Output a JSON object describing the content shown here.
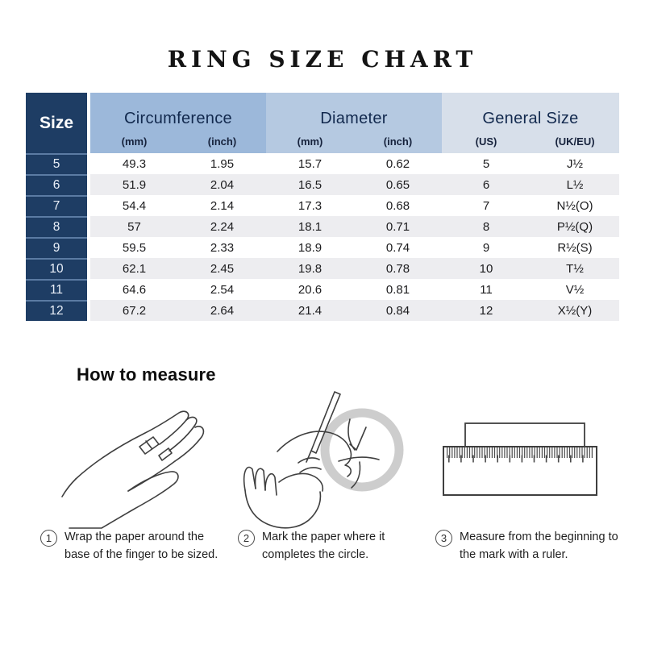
{
  "title": "RING SIZE CHART",
  "table": {
    "size_header": "Size",
    "groups": [
      {
        "label": "Circumference",
        "sub": [
          "(mm)",
          "(inch)"
        ]
      },
      {
        "label": "Diameter",
        "sub": [
          "(mm)",
          "(inch)"
        ]
      },
      {
        "label": "General Size",
        "sub": [
          "(US)",
          "(UK/EU)"
        ]
      }
    ],
    "rows": [
      {
        "size": "5",
        "values": [
          "49.3",
          "1.95",
          "15.7",
          "0.62",
          "5",
          "J½"
        ]
      },
      {
        "size": "6",
        "values": [
          "51.9",
          "2.04",
          "16.5",
          "0.65",
          "6",
          "L½"
        ]
      },
      {
        "size": "7",
        "values": [
          "54.4",
          "2.14",
          "17.3",
          "0.68",
          "7",
          "N½(O)"
        ]
      },
      {
        "size": "8",
        "values": [
          "57",
          "2.24",
          "18.1",
          "0.71",
          "8",
          "P½(Q)"
        ]
      },
      {
        "size": "9",
        "values": [
          "59.5",
          "2.33",
          "18.9",
          "0.74",
          "9",
          "R½(S)"
        ]
      },
      {
        "size": "10",
        "values": [
          "62.1",
          "2.45",
          "19.8",
          "0.78",
          "10",
          "T½"
        ]
      },
      {
        "size": "11",
        "values": [
          "64.6",
          "2.54",
          "20.6",
          "0.81",
          "11",
          "V½"
        ]
      },
      {
        "size": "12",
        "values": [
          "67.2",
          "2.64",
          "21.4",
          "0.84",
          "12",
          "X½(Y)"
        ]
      }
    ]
  },
  "how_to_measure": {
    "heading": "How to measure",
    "steps": [
      {
        "num": "1",
        "text": "Wrap the paper around the base of the finger to be sized."
      },
      {
        "num": "2",
        "text": "Mark the paper where it completes the circle."
      },
      {
        "num": "3",
        "text": "Measure from the beginning to the mark with a ruler."
      }
    ]
  },
  "colors": {
    "size_column": "#1e3d64",
    "circumference_header": "#9cb8da",
    "diameter_header": "#b5c9e1",
    "general_size_header": "#d7dfea",
    "striped_row": "#ededf0",
    "header_text": "#12294e",
    "magnifier_ring": "#cdcdcd"
  },
  "icons": {
    "step1": "hand-wrap-illustration",
    "step2": "mark-paper-illustration",
    "step3": "ruler-illustration"
  },
  "chart_data": {
    "type": "table",
    "title": "RING SIZE CHART",
    "columns": [
      "Size",
      "Circumference (mm)",
      "Circumference (inch)",
      "Diameter (mm)",
      "Diameter (inch)",
      "General Size (US)",
      "General Size (UK/EU)"
    ],
    "rows": [
      [
        "5",
        49.3,
        1.95,
        15.7,
        0.62,
        "5",
        "J½"
      ],
      [
        "6",
        51.9,
        2.04,
        16.5,
        0.65,
        "6",
        "L½"
      ],
      [
        "7",
        54.4,
        2.14,
        17.3,
        0.68,
        "7",
        "N½(O)"
      ],
      [
        "8",
        57,
        2.24,
        18.1,
        0.71,
        "8",
        "P½(Q)"
      ],
      [
        "9",
        59.5,
        2.33,
        18.9,
        0.74,
        "9",
        "R½(S)"
      ],
      [
        "10",
        62.1,
        2.45,
        19.8,
        0.78,
        "10",
        "T½"
      ],
      [
        "11",
        64.6,
        2.54,
        20.6,
        0.81,
        "11",
        "V½"
      ],
      [
        "12",
        67.2,
        2.64,
        21.4,
        0.84,
        "12",
        "X½(Y)"
      ]
    ]
  }
}
